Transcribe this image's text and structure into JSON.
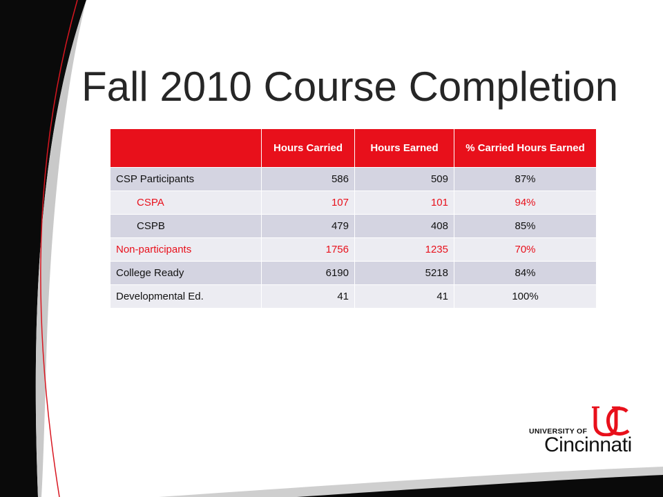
{
  "slide": {
    "title": "Fall 2010 Course Completion",
    "colors": {
      "accent": "#e8101b",
      "shade_row": "#d4d4e1",
      "plain_row": "#ececf2"
    }
  },
  "table": {
    "headers": [
      "",
      "Hours Carried",
      "Hours Earned",
      "% Carried Hours Earned"
    ],
    "rows": [
      {
        "label": "CSP Participants",
        "carried": "586",
        "earned": "509",
        "pct": "87%"
      },
      {
        "label": "CSPA",
        "carried": "107",
        "earned": "101",
        "pct": "94%"
      },
      {
        "label": "CSPB",
        "carried": "479",
        "earned": "408",
        "pct": "85%"
      },
      {
        "label": "Non-participants",
        "carried": "1756",
        "earned": "1235",
        "pct": "70%"
      },
      {
        "label": "College Ready",
        "carried": "6190",
        "earned": "5218",
        "pct": "84%"
      },
      {
        "label": "Developmental Ed.",
        "carried": "41",
        "earned": "41",
        "pct": "100%"
      }
    ]
  },
  "logo": {
    "line1": "UNIVERSITY OF",
    "line2": "Cincinnati"
  }
}
